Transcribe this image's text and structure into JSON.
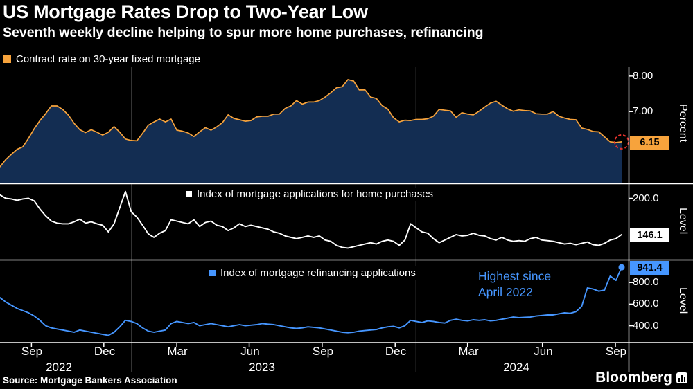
{
  "header": {
    "title": "US Mortgage Rates Drop to Two-Year Low",
    "subtitle": "Seventh weekly decline helping to spur more home purchases, refinancing"
  },
  "colors": {
    "orange": "#f7a33c",
    "blue": "#4696ff",
    "white": "#ffffff",
    "area_fill": "#132d52",
    "red": "#e8332d"
  },
  "legend_top": {
    "label": "Contract rate on 30-year fixed mortgage",
    "swatch_color": "#f7a33c"
  },
  "annotation": {
    "text": "Highest since\nApril 2022"
  },
  "footer": {
    "source": "Source: Mortgage Bankers Association",
    "brand": "Bloomberg"
  },
  "chart_data": {
    "type": "line",
    "x_range": [
      "Aug 2022",
      "Sep 2024"
    ],
    "frequency": "weekly",
    "x_ticks": [
      {
        "label": "Sep",
        "pos": 0.05
      },
      {
        "label": "Dec",
        "pos": 0.165
      },
      {
        "label": "Mar",
        "pos": 0.281
      },
      {
        "label": "Jun",
        "pos": 0.396
      },
      {
        "label": "Sep",
        "pos": 0.512
      },
      {
        "label": "Dec",
        "pos": 0.628
      },
      {
        "label": "Mar",
        "pos": 0.743
      },
      {
        "label": "Jun",
        "pos": 0.862
      },
      {
        "label": "Sep",
        "pos": 0.978
      }
    ],
    "x_years": [
      {
        "label": "2022",
        "pos": 0.094
      },
      {
        "label": "2023",
        "pos": 0.416
      },
      {
        "label": "2024",
        "pos": 0.82
      }
    ],
    "year_dividers": [
      0.209,
      0.661
    ],
    "panels": [
      {
        "name": "Contract rate on 30-year fixed mortgage",
        "type": "area",
        "ylabel": "Percent",
        "color": "#f7a33c",
        "fill": "#132d52",
        "ylim": [
          5.0,
          8.25
        ],
        "ticks": [
          {
            "label": "8.00",
            "value": 8.0
          },
          {
            "label": "7.00",
            "value": 7.0
          }
        ],
        "last_label": "6.15",
        "last_value": 6.15,
        "highlight_last": true,
        "values": [
          5.45,
          5.65,
          5.8,
          5.94,
          6.01,
          6.25,
          6.52,
          6.75,
          6.94,
          7.16,
          7.16,
          7.06,
          6.9,
          6.67,
          6.49,
          6.41,
          6.49,
          6.42,
          6.34,
          6.42,
          6.58,
          6.42,
          6.23,
          6.19,
          6.18,
          6.39,
          6.62,
          6.71,
          6.79,
          6.71,
          6.79,
          6.48,
          6.45,
          6.4,
          6.3,
          6.43,
          6.55,
          6.48,
          6.57,
          6.69,
          6.91,
          6.81,
          6.77,
          6.73,
          6.75,
          6.85,
          6.87,
          6.87,
          6.93,
          6.93,
          7.09,
          7.16,
          7.31,
          7.21,
          7.27,
          7.27,
          7.31,
          7.41,
          7.53,
          7.67,
          7.7,
          7.9,
          7.86,
          7.61,
          7.61,
          7.41,
          7.37,
          7.17,
          7.07,
          6.83,
          6.71,
          6.76,
          6.75,
          6.78,
          6.78,
          6.8,
          6.87,
          7.06,
          7.04,
          7.02,
          6.84,
          6.97,
          6.93,
          6.91,
          7.01,
          7.13,
          7.24,
          7.29,
          7.18,
          7.08,
          7.01,
          7.05,
          7.03,
          7.02,
          6.94,
          6.93,
          6.93,
          7.0,
          6.87,
          6.82,
          6.78,
          6.77,
          6.54,
          6.5,
          6.44,
          6.43,
          6.29,
          6.15,
          6.13,
          6.15
        ]
      },
      {
        "name": "Index of mortgage applications for home purchases",
        "legend": "Index of mortgage applications for home purchases",
        "type": "line",
        "ylabel": "Level",
        "color": "#ffffff",
        "ylim": [
          110,
          220
        ],
        "ticks": [
          {
            "label": "200.0",
            "value": 200
          }
        ],
        "last_label": "146.1",
        "last_value": 146.1,
        "values": [
          205,
          200,
          199,
          197,
          199,
          200,
          196,
          184,
          174,
          166,
          163,
          162,
          162,
          165,
          169,
          163,
          165,
          162,
          160,
          150,
          162,
          186,
          210,
          180,
          172,
          160,
          147,
          142,
          148,
          152,
          168,
          166,
          164,
          162,
          168,
          158,
          164,
          166,
          160,
          158,
          152,
          156,
          162,
          158,
          160,
          158,
          156,
          154,
          150,
          148,
          144,
          142,
          140,
          142,
          144,
          142,
          144,
          138,
          136,
          130,
          127,
          126,
          128,
          130,
          132,
          134,
          132,
          136,
          138,
          136,
          130,
          138,
          162,
          156,
          150,
          148,
          140,
          134,
          138,
          142,
          146,
          144,
          145,
          148,
          145,
          144,
          140,
          138,
          142,
          138,
          136,
          137,
          136,
          140,
          142,
          138,
          137,
          136,
          134,
          132,
          133,
          131,
          133,
          135,
          131,
          130,
          133,
          138,
          140,
          146.1
        ]
      },
      {
        "name": "Index of mortgage refinancing applications",
        "legend": "Index of mortgage refinancing applications",
        "type": "line",
        "ylabel": "Level",
        "color": "#4696ff",
        "ylim": [
          250,
          1000
        ],
        "ticks": [
          {
            "label": "800.0",
            "value": 800
          },
          {
            "label": "600.0",
            "value": 600
          },
          {
            "label": "400.0",
            "value": 400
          }
        ],
        "last_label": "941.4",
        "last_value": 941.4,
        "end_dot": true,
        "values": [
          660,
          620,
          590,
          560,
          540,
          520,
          490,
          450,
          400,
          380,
          370,
          360,
          350,
          340,
          360,
          350,
          340,
          330,
          320,
          310,
          340,
          390,
          450,
          440,
          420,
          380,
          350,
          340,
          350,
          360,
          420,
          440,
          430,
          420,
          430,
          400,
          410,
          420,
          410,
          400,
          390,
          400,
          410,
          400,
          405,
          410,
          420,
          415,
          410,
          400,
          390,
          380,
          375,
          380,
          390,
          385,
          380,
          370,
          360,
          350,
          340,
          335,
          340,
          350,
          355,
          360,
          365,
          380,
          390,
          395,
          380,
          400,
          450,
          440,
          430,
          445,
          440,
          430,
          425,
          450,
          460,
          450,
          445,
          455,
          450,
          455,
          445,
          450,
          460,
          470,
          480,
          475,
          478,
          480,
          490,
          495,
          500,
          500,
          510,
          520,
          515,
          530,
          580,
          750,
          740,
          720,
          730,
          860,
          820,
          941.4
        ]
      }
    ]
  }
}
